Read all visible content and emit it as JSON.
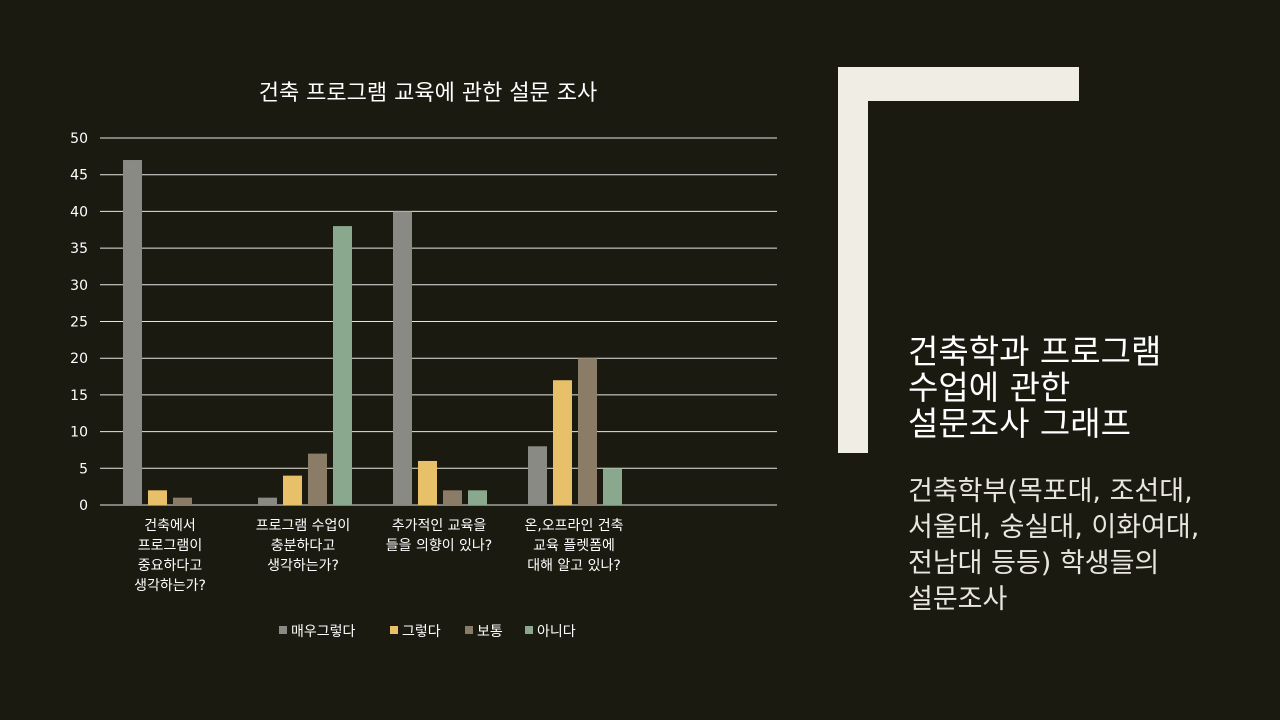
{
  "slide": {
    "heading_lines": [
      "건축학과 프로그램",
      "수업에 관한",
      "설문조사 그래프"
    ],
    "subtext_lines": [
      "건축학부(목포대, 조선대,",
      "서울대, 숭실대, 이화여대,",
      "전남대 등등) 학생들의",
      "설문조사"
    ]
  },
  "colors": {
    "background": "#1a1a10",
    "frame": "#efede4",
    "grid": "#e6e6e6"
  },
  "chart_data": {
    "type": "bar",
    "title": "건축 프로그램 교육에 관한 설문 조사",
    "xlabel": "",
    "ylabel": "",
    "ylim": [
      0,
      50
    ],
    "yticks": [
      0,
      5,
      10,
      15,
      20,
      25,
      30,
      35,
      40,
      45,
      50
    ],
    "grid": true,
    "legend_position": "bottom",
    "categories": [
      [
        "건축에서",
        "프로그램이",
        "중요하다고",
        "생각하는가?"
      ],
      [
        "프로그램 수업이",
        "충분하다고",
        "생각하는가?"
      ],
      [
        "추가적인 교육을",
        "들을 의향이 있나?"
      ],
      [
        "온,오프라인 건축",
        "교육 플렛폼에",
        "대해 알고 있나?"
      ]
    ],
    "series": [
      {
        "name": "매우그렇다",
        "color": "#8a8a84",
        "values": [
          47,
          1,
          40,
          8
        ]
      },
      {
        "name": "그렇다",
        "color": "#e8c06a",
        "values": [
          2,
          4,
          6,
          17
        ]
      },
      {
        "name": "보통",
        "color": "#8a7c66",
        "values": [
          1,
          7,
          2,
          20
        ]
      },
      {
        "name": "아니다",
        "color": "#8aa88e",
        "values": [
          0,
          38,
          2,
          5
        ]
      }
    ]
  }
}
